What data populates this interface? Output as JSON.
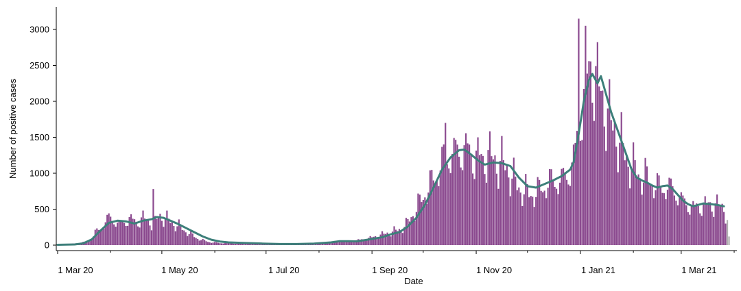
{
  "chart_data": {
    "type": "bar",
    "title": "",
    "xlabel": "Date",
    "ylabel": "Number of positive cases",
    "ylim": [
      0,
      3200
    ],
    "yticks": [
      "0",
      "500",
      "1000",
      "1500",
      "2000",
      "2500",
      "3000"
    ],
    "xticks": [
      {
        "label": "1 Mar 20",
        "day": 0
      },
      {
        "label": "1 May 20",
        "day": 61
      },
      {
        "label": "1 Jul 20",
        "day": 122
      },
      {
        "label": "1 Sep 20",
        "day": 184
      },
      {
        "label": "1 Nov 20",
        "day": 245
      },
      {
        "label": "1 Jan 21",
        "day": 306
      },
      {
        "label": "1 Mar 21",
        "day": 365
      }
    ],
    "x_unit": "days since 1 Mar 20",
    "colors": {
      "bars": "#8b4a8f",
      "incomplete_bars": "#b0b0b0",
      "line": "#3d7f7a"
    },
    "series": [
      {
        "type": "bar",
        "values_anchors": [
          [
            0,
            5
          ],
          [
            5,
            8
          ],
          [
            8,
            15
          ],
          [
            10,
            25
          ],
          [
            12,
            30
          ],
          [
            14,
            30
          ],
          [
            16,
            40
          ],
          [
            18,
            55
          ],
          [
            20,
            90
          ],
          [
            22,
            170
          ],
          [
            24,
            210
          ],
          [
            26,
            260
          ],
          [
            28,
            330
          ],
          [
            30,
            370
          ],
          [
            32,
            380
          ],
          [
            34,
            330
          ],
          [
            36,
            290
          ],
          [
            38,
            320
          ],
          [
            40,
            340
          ],
          [
            42,
            370
          ],
          [
            44,
            340
          ],
          [
            46,
            330
          ],
          [
            48,
            340
          ],
          [
            50,
            380
          ],
          [
            52,
            330
          ],
          [
            54,
            340
          ],
          [
            56,
            260
          ],
          [
            58,
            350
          ],
          [
            60,
            420
          ],
          [
            62,
            380
          ],
          [
            64,
            350
          ],
          [
            66,
            330
          ],
          [
            68,
            300
          ],
          [
            70,
            270
          ],
          [
            72,
            250
          ],
          [
            74,
            210
          ],
          [
            76,
            180
          ],
          [
            78,
            150
          ],
          [
            80,
            120
          ],
          [
            82,
            95
          ],
          [
            84,
            75
          ],
          [
            86,
            60
          ],
          [
            88,
            50
          ],
          [
            90,
            40
          ],
          [
            95,
            30
          ],
          [
            100,
            28
          ],
          [
            105,
            25
          ],
          [
            110,
            20
          ],
          [
            115,
            18
          ],
          [
            120,
            15
          ],
          [
            125,
            14
          ],
          [
            130,
            14
          ],
          [
            135,
            14
          ],
          [
            140,
            16
          ],
          [
            145,
            18
          ],
          [
            150,
            22
          ],
          [
            155,
            30
          ],
          [
            160,
            45
          ],
          [
            165,
            55
          ],
          [
            170,
            55
          ],
          [
            175,
            65
          ],
          [
            180,
            85
          ],
          [
            183,
            100
          ],
          [
            186,
            120
          ],
          [
            189,
            140
          ],
          [
            192,
            160
          ],
          [
            195,
            180
          ],
          [
            198,
            200
          ],
          [
            201,
            230
          ],
          [
            204,
            280
          ],
          [
            207,
            400
          ],
          [
            210,
            500
          ],
          [
            213,
            640
          ],
          [
            216,
            760
          ],
          [
            219,
            870
          ],
          [
            222,
            1000
          ],
          [
            225,
            1150
          ],
          [
            228,
            1250
          ],
          [
            231,
            1280
          ],
          [
            234,
            1300
          ],
          [
            237,
            1350
          ],
          [
            240,
            1320
          ],
          [
            243,
            1250
          ],
          [
            246,
            1230
          ],
          [
            249,
            1200
          ],
          [
            252,
            1250
          ],
          [
            255,
            1200
          ],
          [
            258,
            1150
          ],
          [
            261,
            1130
          ],
          [
            264,
            1050
          ],
          [
            267,
            900
          ],
          [
            270,
            800
          ],
          [
            273,
            760
          ],
          [
            276,
            720
          ],
          [
            279,
            720
          ],
          [
            282,
            760
          ],
          [
            285,
            830
          ],
          [
            288,
            880
          ],
          [
            291,
            900
          ],
          [
            294,
            900
          ],
          [
            297,
            950
          ],
          [
            300,
            1050
          ],
          [
            303,
            1300
          ],
          [
            306,
            1800
          ],
          [
            309,
            2200
          ],
          [
            312,
            2500
          ],
          [
            315,
            2350
          ],
          [
            318,
            2100
          ],
          [
            321,
            1900
          ],
          [
            324,
            1700
          ],
          [
            327,
            1550
          ],
          [
            330,
            1380
          ],
          [
            333,
            1220
          ],
          [
            336,
            1100
          ],
          [
            339,
            1020
          ],
          [
            342,
            970
          ],
          [
            345,
            930
          ],
          [
            348,
            880
          ],
          [
            351,
            820
          ],
          [
            354,
            800
          ],
          [
            357,
            820
          ],
          [
            360,
            780
          ],
          [
            363,
            700
          ],
          [
            366,
            620
          ],
          [
            369,
            560
          ],
          [
            372,
            530
          ],
          [
            375,
            540
          ],
          [
            378,
            560
          ],
          [
            381,
            570
          ],
          [
            384,
            560
          ],
          [
            387,
            550
          ],
          [
            390,
            530
          ],
          [
            392,
            350
          ],
          [
            393,
            120
          ]
        ],
        "weekday_factors": [
          0.95,
          1.25,
          1.15,
          1.05,
          1.0,
          0.85,
          0.7
        ],
        "notable_peaks": [
          {
            "day": 56,
            "value": 780
          },
          {
            "day": 305,
            "value": 3150
          },
          {
            "day": 309,
            "value": 3050
          },
          {
            "day": 227,
            "value": 1700
          }
        ],
        "last_bars": [
          {
            "day": 392,
            "value": 350
          },
          {
            "day": 393,
            "value": 120
          }
        ]
      },
      {
        "type": "line",
        "points": [
          [
            0,
            5
          ],
          [
            10,
            10
          ],
          [
            15,
            25
          ],
          [
            20,
            80
          ],
          [
            25,
            200
          ],
          [
            30,
            310
          ],
          [
            35,
            340
          ],
          [
            40,
            330
          ],
          [
            45,
            300
          ],
          [
            50,
            340
          ],
          [
            55,
            360
          ],
          [
            58,
            390
          ],
          [
            62,
            380
          ],
          [
            66,
            340
          ],
          [
            70,
            300
          ],
          [
            75,
            240
          ],
          [
            80,
            180
          ],
          [
            85,
            120
          ],
          [
            90,
            75
          ],
          [
            95,
            50
          ],
          [
            100,
            38
          ],
          [
            110,
            30
          ],
          [
            120,
            22
          ],
          [
            130,
            16
          ],
          [
            140,
            16
          ],
          [
            150,
            22
          ],
          [
            160,
            38
          ],
          [
            165,
            55
          ],
          [
            170,
            55
          ],
          [
            175,
            52
          ],
          [
            180,
            70
          ],
          [
            185,
            90
          ],
          [
            190,
            110
          ],
          [
            195,
            150
          ],
          [
            200,
            180
          ],
          [
            205,
            260
          ],
          [
            210,
            380
          ],
          [
            215,
            560
          ],
          [
            220,
            800
          ],
          [
            225,
            1050
          ],
          [
            230,
            1220
          ],
          [
            235,
            1320
          ],
          [
            238,
            1330
          ],
          [
            242,
            1260
          ],
          [
            246,
            1180
          ],
          [
            250,
            1120
          ],
          [
            255,
            1150
          ],
          [
            260,
            1140
          ],
          [
            265,
            1100
          ],
          [
            270,
            940
          ],
          [
            275,
            820
          ],
          [
            280,
            800
          ],
          [
            285,
            850
          ],
          [
            290,
            900
          ],
          [
            295,
            960
          ],
          [
            300,
            1050
          ],
          [
            302,
            1150
          ],
          [
            305,
            1550
          ],
          [
            308,
            2000
          ],
          [
            311,
            2300
          ],
          [
            313,
            2380
          ],
          [
            316,
            2250
          ],
          [
            318,
            2350
          ],
          [
            321,
            2100
          ],
          [
            324,
            1850
          ],
          [
            327,
            1650
          ],
          [
            330,
            1450
          ],
          [
            333,
            1250
          ],
          [
            336,
            1050
          ],
          [
            339,
            940
          ],
          [
            342,
            900
          ],
          [
            345,
            870
          ],
          [
            348,
            830
          ],
          [
            351,
            800
          ],
          [
            354,
            820
          ],
          [
            357,
            830
          ],
          [
            360,
            780
          ],
          [
            363,
            700
          ],
          [
            366,
            620
          ],
          [
            369,
            570
          ],
          [
            372,
            540
          ],
          [
            375,
            560
          ],
          [
            378,
            580
          ],
          [
            382,
            570
          ],
          [
            386,
            560
          ],
          [
            390,
            540
          ]
        ]
      }
    ],
    "grid": false,
    "legend": "none"
  }
}
